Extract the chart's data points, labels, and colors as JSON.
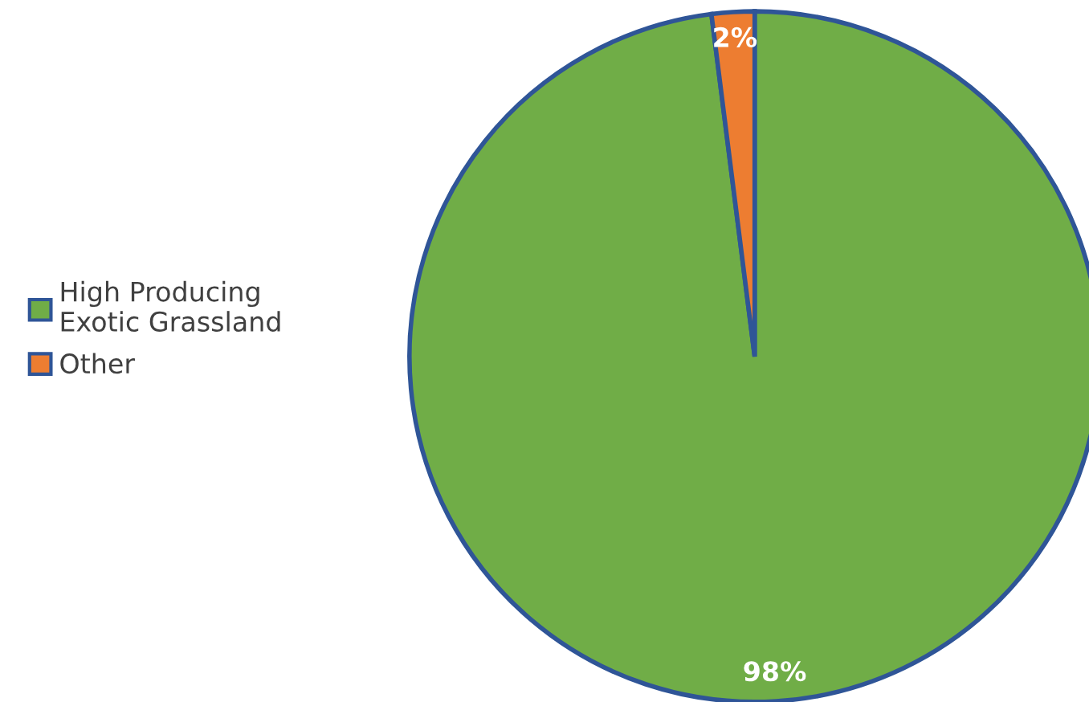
{
  "chart_data": {
    "type": "pie",
    "categories": [
      "High Producing\nExotic Grassland",
      "Other"
    ],
    "values": [
      98,
      2
    ],
    "colors": [
      "#70ad47",
      "#ed7d31"
    ],
    "value_labels": [
      "98%",
      "2%"
    ],
    "legend": "left"
  }
}
